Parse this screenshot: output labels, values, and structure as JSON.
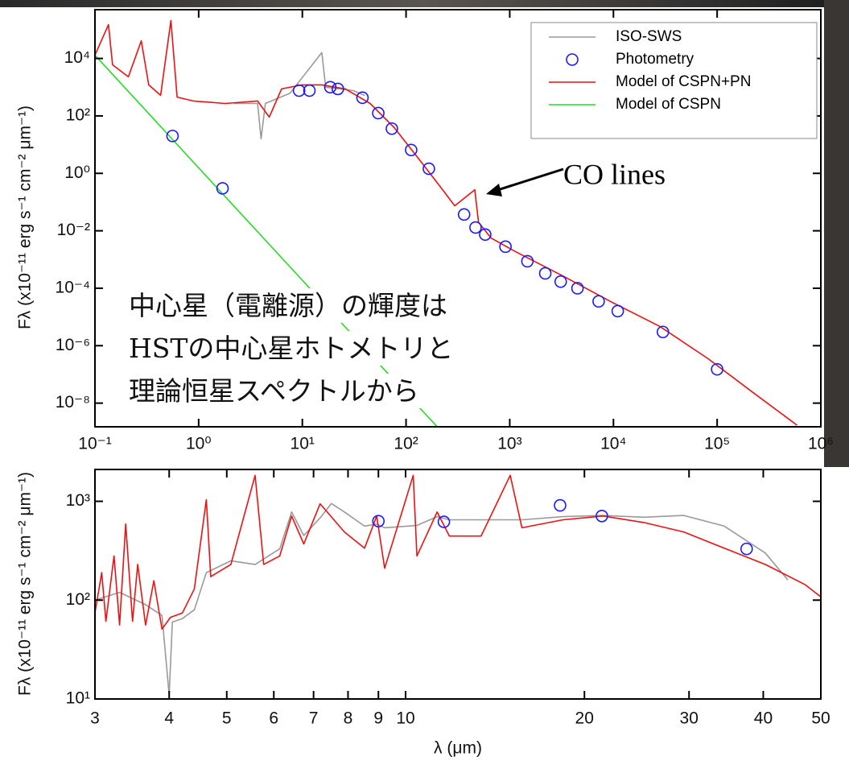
{
  "chart_data": [
    {
      "type": "line",
      "log_x": true,
      "log_y": true,
      "legend": "top-right",
      "ylabel": "Fλ (x10⁻¹¹ erg s⁻¹ cm⁻² μm⁻¹)",
      "xlim": [
        0.1,
        1000000
      ],
      "ylim": [
        1.5e-09,
        500000
      ],
      "xticks": [
        {
          "value": 0.1,
          "label": "10⁻¹"
        },
        {
          "value": 1,
          "label": "10⁰"
        },
        {
          "value": 10,
          "label": "10¹"
        },
        {
          "value": 100,
          "label": "10²"
        },
        {
          "value": 1000,
          "label": "10³"
        },
        {
          "value": 10000,
          "label": "10⁴"
        },
        {
          "value": 100000,
          "label": "10⁵"
        },
        {
          "value": 1000000,
          "label": "10⁶"
        }
      ],
      "yticks": [
        {
          "value": 1e-08,
          "label": "10⁻⁸"
        },
        {
          "value": 1e-06,
          "label": "10⁻⁶"
        },
        {
          "value": 0.0001,
          "label": "10⁻⁴"
        },
        {
          "value": 0.01,
          "label": "10⁻²"
        },
        {
          "value": 1,
          "label": "10⁰"
        },
        {
          "value": 100,
          "label": "10²"
        },
        {
          "value": 10000,
          "label": "10⁴"
        }
      ],
      "annotations": [
        "CO lines",
        "中心星（電離源）の輝度は",
        "HSTの中心星ホトメトリと",
        "理論恒星スペクトルから"
      ],
      "series": [
        {
          "name": "ISO-SWS",
          "style": "line",
          "color": "#9a9a9a",
          "x": [
            2.2,
            3.7,
            4.0,
            4.4,
            7.6,
            15.4,
            16.8,
            31,
            40
          ],
          "values": [
            270,
            270,
            16,
            270,
            620,
            16000,
            1000,
            760,
            510
          ]
        },
        {
          "name": "Photometry",
          "style": "circle",
          "color": "#1a1aff",
          "x": [
            0.56,
            1.7,
            9.3,
            11.7,
            18.6,
            22,
            38,
            54,
            73,
            112,
            166,
            363,
            468,
            580,
            910,
            1480,
            2200,
            3100,
            4500,
            7200,
            11000,
            30000,
            100000
          ],
          "values": [
            20,
            0.3,
            760,
            760,
            1000,
            870,
            430,
            125,
            36,
            6.5,
            1.45,
            0.037,
            0.013,
            0.0074,
            0.0028,
            0.00087,
            0.00033,
            0.00017,
            0.0001,
            3.5e-05,
            1.6e-05,
            3e-06,
            1.5e-07
          ]
        },
        {
          "name": "Model of CSPN+PN",
          "style": "line",
          "color": "#ee1111",
          "x": [
            0.1,
            0.135,
            0.148,
            0.21,
            0.28,
            0.33,
            0.43,
            0.54,
            0.62,
            0.89,
            1.8,
            3.7,
            4.8,
            6.3,
            9.9,
            15.4,
            26,
            45,
            77,
            130,
            225,
            295,
            460,
            500,
            660,
            1130,
            3300,
            9600,
            28000,
            82000,
            240000,
            490000,
            590000
          ],
          "values": [
            13000,
            150000,
            6000,
            2300,
            41000,
            1200,
            520,
            210000,
            450,
            330,
            270,
            330,
            91,
            870,
            1200,
            1200,
            870,
            270,
            39,
            3.5,
            0.27,
            0.074,
            0.27,
            0.02,
            0.0056,
            0.0019,
            0.00026,
            3.3e-05,
            4.7e-06,
            3.5e-07,
            1.9e-08,
            2.8e-09,
            1.7e-09
          ]
        },
        {
          "name": "Model of CSPN",
          "style": "line",
          "color": "#22dd22",
          "x": [
            0.1,
            1,
            10,
            100,
            200
          ],
          "values": [
            13000,
            1.55,
            0.00019,
            2.2e-08,
            1.5e-09
          ]
        }
      ]
    },
    {
      "type": "line",
      "log_x": true,
      "log_y": true,
      "xlabel": "λ (μm)",
      "ylabel": "Fλ (x10⁻¹¹ erg s⁻¹ cm⁻² μm⁻¹)",
      "xlim": [
        3,
        50
      ],
      "ylim": [
        10,
        2100
      ],
      "xticks": [
        3,
        4,
        5,
        6,
        7,
        8,
        9,
        10,
        20,
        30,
        40,
        50
      ],
      "yticks": [
        {
          "value": 10,
          "label": "10¹"
        },
        {
          "value": 100,
          "label": "10²"
        },
        {
          "value": 1000,
          "label": "10³"
        }
      ],
      "series": [
        {
          "style": "line",
          "color": "#9a9a9a",
          "x": [
            3.0,
            3.3,
            3.65,
            3.89,
            4.0,
            4.05,
            4.21,
            4.41,
            4.62,
            5.08,
            5.58,
            6.14,
            6.43,
            6.74,
            7.18,
            7.5,
            7.89,
            8.53,
            8.94,
            9.22,
            10.45,
            11.3,
            11.85,
            13.4,
            15.7,
            18.4,
            21.5,
            25.2,
            29.4,
            34.4,
            40.3,
            44
          ],
          "values": [
            100,
            120,
            90,
            70,
            11,
            60,
            65,
            80,
            190,
            250,
            230,
            330,
            780,
            450,
            680,
            950,
            780,
            560,
            590,
            540,
            570,
            700,
            650,
            650,
            650,
            700,
            720,
            690,
            720,
            560,
            300,
            160
          ]
        },
        {
          "style": "line",
          "color": "#ee1111",
          "x": [
            3.0,
            3.08,
            3.13,
            3.23,
            3.3,
            3.38,
            3.47,
            3.54,
            3.65,
            3.77,
            3.89,
            4.02,
            4.21,
            4.41,
            4.62,
            4.7,
            5.08,
            5.58,
            5.77,
            6.14,
            6.43,
            6.74,
            7.18,
            7.89,
            8.53,
            8.94,
            9.22,
            10.3,
            10.45,
            11.3,
            11.85,
            13.4,
            15.0,
            15.7,
            18.4,
            21.5,
            25.2,
            29.4,
            34.4,
            40.3,
            47.1,
            50
          ],
          "values": [
            74,
            190,
            61,
            280,
            56,
            590,
            61,
            230,
            56,
            157,
            51,
            67,
            74,
            130,
            1040,
            173,
            230,
            1830,
            230,
            280,
            710,
            370,
            945,
            490,
            335,
            710,
            210,
            1830,
            280,
            780,
            445,
            445,
            1830,
            540,
            650,
            710,
            610,
            490,
            335,
            230,
            143,
            108
          ]
        },
        {
          "style": "circle",
          "color": "#1a1aff",
          "x": [
            9.0,
            11.6,
            18.2,
            21.4,
            37.5
          ],
          "values": [
            630,
            620,
            910,
            710,
            330
          ]
        }
      ]
    }
  ]
}
